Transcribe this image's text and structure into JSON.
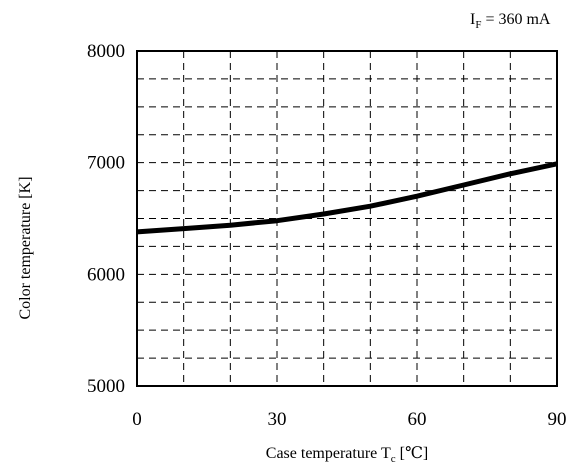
{
  "annotation": {
    "symbol": "I",
    "subscript": "F",
    "value_text": " = 360 mA"
  },
  "chart_data": {
    "type": "line",
    "title": "",
    "xlabel": "Case temperature",
    "xlabel_symbol": "T",
    "xlabel_subscript": "c",
    "xlabel_unit": "[℃]",
    "ylabel": "Color temperature  [K]",
    "xlim": [
      0,
      90
    ],
    "ylim": [
      5000,
      8000
    ],
    "x_ticks": [
      0,
      30,
      60,
      90
    ],
    "y_ticks": [
      5000,
      6000,
      7000,
      8000
    ],
    "x_tick_labels": [
      "0",
      "30",
      "60",
      "90"
    ],
    "y_tick_labels": [
      "5000",
      "6000",
      "7000",
      "8000"
    ],
    "grid": true,
    "grid_style": "dashed",
    "x_grid_step": 10,
    "y_grid_step": 250,
    "series": [
      {
        "x": [
          0,
          10,
          20,
          30,
          40,
          50,
          60,
          70,
          80,
          90
        ],
        "y": [
          6380,
          6410,
          6440,
          6480,
          6540,
          6610,
          6700,
          6800,
          6900,
          6990
        ]
      }
    ],
    "colors": {
      "line": "#000000",
      "grid": "#000000",
      "frame": "#000000"
    }
  }
}
